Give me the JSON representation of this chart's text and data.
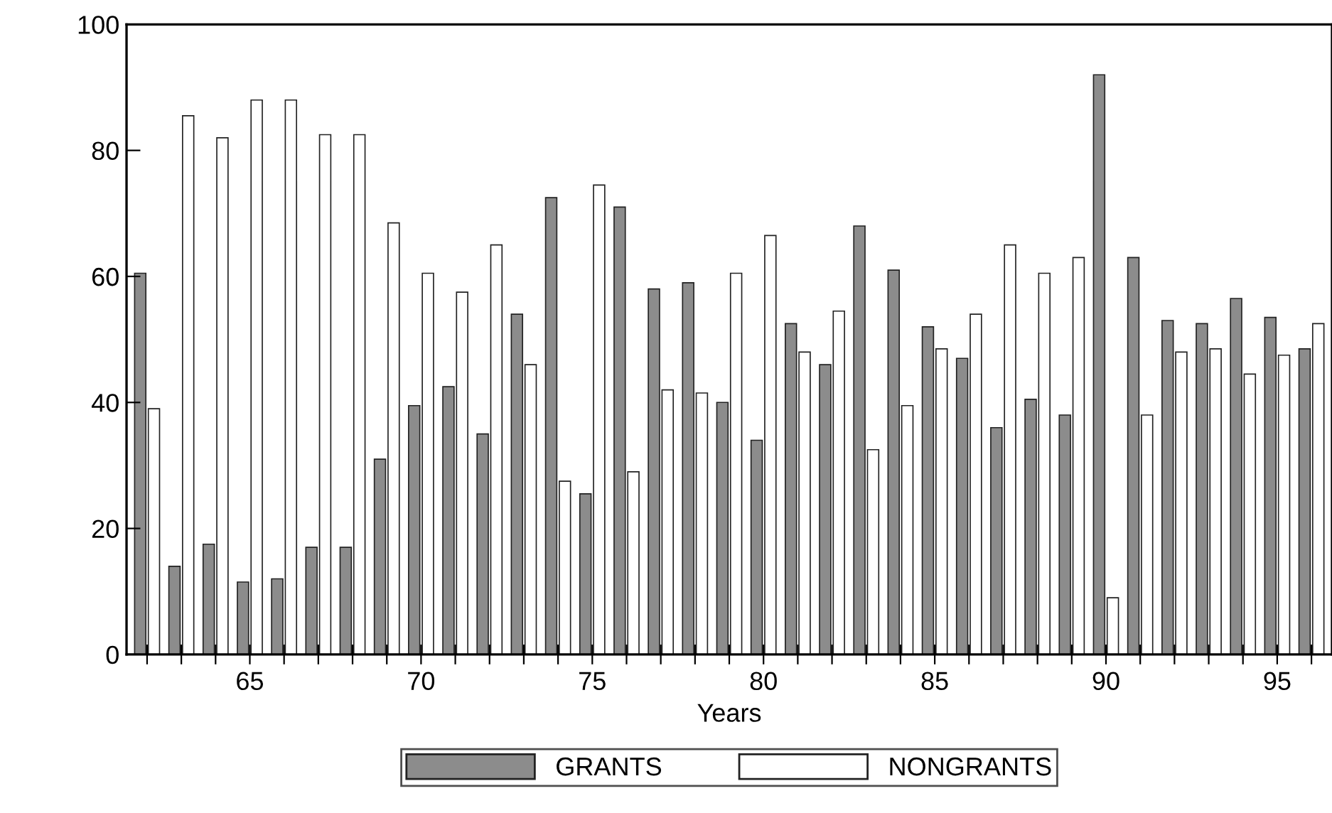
{
  "chart_data": {
    "type": "bar",
    "xlabel": "Years",
    "x": [
      62,
      63,
      64,
      65,
      66,
      67,
      68,
      69,
      70,
      71,
      72,
      73,
      74,
      75,
      76,
      77,
      78,
      79,
      80,
      81,
      82,
      83,
      84,
      85,
      86,
      87,
      88,
      89,
      90,
      91,
      92,
      93,
      94,
      95,
      96
    ],
    "series": [
      {
        "name": "GRANTS",
        "color": "#8c8c8c",
        "values": [
          60.5,
          14,
          17.5,
          11.5,
          12,
          17,
          17,
          31,
          39.5,
          42.5,
          35,
          54,
          72.5,
          25.5,
          71,
          58,
          59,
          40,
          34,
          52.5,
          46,
          68,
          61,
          52,
          47,
          36,
          40.5,
          38,
          92,
          63,
          53,
          52.5,
          56.5,
          53.5,
          48.5
        ]
      },
      {
        "name": "NONGRANTS",
        "color": "#ffffff",
        "values": [
          39,
          85.5,
          82,
          88,
          88,
          82.5,
          82.5,
          68.5,
          60.5,
          57.5,
          65,
          46,
          27.5,
          74.5,
          29,
          42,
          41.5,
          60.5,
          66.5,
          48,
          54.5,
          32.5,
          39.5,
          48.5,
          54,
          65,
          60.5,
          63,
          9,
          38,
          48,
          48.5,
          44.5,
          47.5,
          52.5
        ]
      }
    ],
    "xlim": [
      61.4,
      96.6
    ],
    "xticks": [
      {
        "value": 62,
        "label": null
      },
      {
        "value": 63,
        "label": null
      },
      {
        "value": 64,
        "label": null
      },
      65,
      {
        "value": 66,
        "label": null
      },
      {
        "value": 67,
        "label": null
      },
      {
        "value": 68,
        "label": null
      },
      {
        "value": 69,
        "label": null
      },
      70,
      {
        "value": 71,
        "label": null
      },
      {
        "value": 72,
        "label": null
      },
      {
        "value": 73,
        "label": null
      },
      {
        "value": 74,
        "label": null
      },
      75,
      {
        "value": 76,
        "label": null
      },
      {
        "value": 77,
        "label": null
      },
      {
        "value": 78,
        "label": null
      },
      {
        "value": 79,
        "label": null
      },
      80,
      {
        "value": 81,
        "label": null
      },
      {
        "value": 82,
        "label": null
      },
      {
        "value": 83,
        "label": null
      },
      {
        "value": 84,
        "label": null
      },
      85,
      {
        "value": 86,
        "label": null
      },
      {
        "value": 87,
        "label": null
      },
      {
        "value": 88,
        "label": null
      },
      {
        "value": 89,
        "label": null
      },
      90,
      {
        "value": 91,
        "label": null
      },
      {
        "value": 92,
        "label": null
      },
      {
        "value": 93,
        "label": null
      },
      {
        "value": 94,
        "label": null
      },
      95,
      {
        "value": 96,
        "label": null
      }
    ],
    "ylim": [
      0,
      100
    ],
    "yticks": [
      0,
      20,
      40,
      60,
      80,
      100
    ],
    "grid": false,
    "legend": "bottom"
  }
}
